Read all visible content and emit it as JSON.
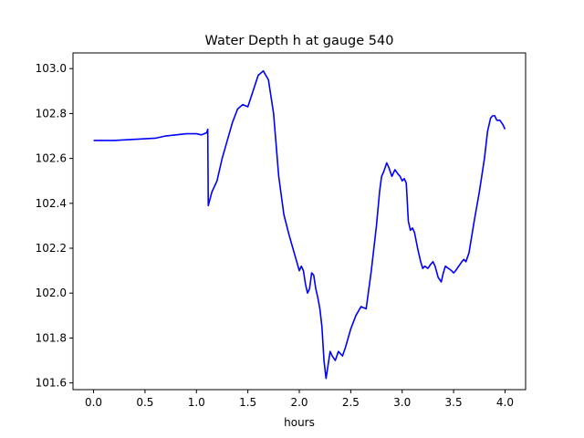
{
  "chart_data": {
    "type": "line",
    "title": "Water Depth h at gauge 540",
    "xlabel": "hours",
    "ylabel": "",
    "xlim": [
      -0.2,
      4.2
    ],
    "ylim": [
      101.57,
      103.07
    ],
    "xticks": [
      0.0,
      0.5,
      1.0,
      1.5,
      2.0,
      2.5,
      3.0,
      3.5,
      4.0
    ],
    "xtick_labels": [
      "0.0",
      "0.5",
      "1.0",
      "1.5",
      "2.0",
      "2.5",
      "3.0",
      "3.5",
      "4.0"
    ],
    "yticks": [
      101.6,
      101.8,
      102.0,
      102.2,
      102.4,
      102.6,
      102.8,
      103.0
    ],
    "ytick_labels": [
      "101.6",
      "101.8",
      "102.0",
      "102.2",
      "102.4",
      "102.6",
      "102.8",
      "103.0"
    ],
    "grid": false,
    "series": [
      {
        "color": "#0000ff",
        "x": [
          0.0,
          0.2,
          0.4,
          0.6,
          0.7,
          0.8,
          0.9,
          1.0,
          1.05,
          1.1,
          1.11,
          1.115,
          1.15,
          1.2,
          1.25,
          1.3,
          1.35,
          1.4,
          1.45,
          1.5,
          1.55,
          1.6,
          1.65,
          1.7,
          1.75,
          1.8,
          1.85,
          1.9,
          1.95,
          2.0,
          2.02,
          2.04,
          2.06,
          2.08,
          2.1,
          2.12,
          2.14,
          2.16,
          2.18,
          2.2,
          2.22,
          2.24,
          2.26,
          2.28,
          2.3,
          2.32,
          2.35,
          2.38,
          2.4,
          2.42,
          2.45,
          2.5,
          2.55,
          2.6,
          2.65,
          2.7,
          2.75,
          2.78,
          2.8,
          2.82,
          2.85,
          2.87,
          2.9,
          2.93,
          2.96,
          2.98,
          3.0,
          3.02,
          3.04,
          3.06,
          3.08,
          3.1,
          3.12,
          3.15,
          3.18,
          3.2,
          3.22,
          3.25,
          3.28,
          3.3,
          3.32,
          3.35,
          3.38,
          3.4,
          3.42,
          3.45,
          3.48,
          3.5,
          3.52,
          3.55,
          3.58,
          3.6,
          3.62,
          3.65,
          3.7,
          3.75,
          3.8,
          3.83,
          3.86,
          3.88,
          3.9,
          3.92,
          3.95,
          3.98,
          4.0
        ],
        "y": [
          102.68,
          102.68,
          102.685,
          102.69,
          102.7,
          102.705,
          102.71,
          102.71,
          102.705,
          102.715,
          102.73,
          102.39,
          102.45,
          102.5,
          102.6,
          102.68,
          102.76,
          102.82,
          102.84,
          102.83,
          102.9,
          102.97,
          102.99,
          102.95,
          102.8,
          102.52,
          102.35,
          102.26,
          102.18,
          102.1,
          102.12,
          102.1,
          102.04,
          102.0,
          102.02,
          102.09,
          102.08,
          102.02,
          101.98,
          101.93,
          101.85,
          101.7,
          101.62,
          101.68,
          101.74,
          101.72,
          101.7,
          101.74,
          101.73,
          101.72,
          101.76,
          101.84,
          101.9,
          101.94,
          101.93,
          102.1,
          102.3,
          102.45,
          102.52,
          102.54,
          102.58,
          102.56,
          102.52,
          102.55,
          102.53,
          102.52,
          102.5,
          102.51,
          102.49,
          102.32,
          102.28,
          102.29,
          102.27,
          102.2,
          102.14,
          102.11,
          102.12,
          102.11,
          102.13,
          102.14,
          102.12,
          102.07,
          102.05,
          102.09,
          102.12,
          102.11,
          102.1,
          102.09,
          102.1,
          102.12,
          102.14,
          102.15,
          102.14,
          102.18,
          102.32,
          102.45,
          102.6,
          102.72,
          102.78,
          102.79,
          102.79,
          102.77,
          102.77,
          102.75,
          102.73
        ]
      }
    ]
  }
}
